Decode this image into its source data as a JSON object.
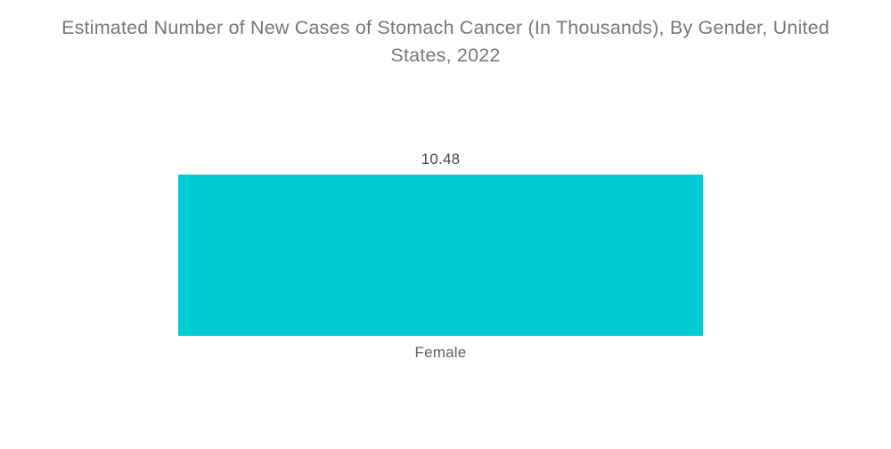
{
  "chart_data": {
    "type": "bar",
    "title": "Estimated Number of New Cases of Stomach Cancer (In Thousands), By Gender, United States, 2022",
    "categories": [
      "Female"
    ],
    "values": [
      10.48
    ],
    "xlabel": "",
    "ylabel": "",
    "ylim": [
      0,
      13
    ],
    "grid": false,
    "legend": "none",
    "colors": {
      "bar": "#00CBD2",
      "title_text": "#75787b",
      "value_text": "#43474b",
      "category_text": "#5d6165",
      "background": "#ffffff"
    }
  }
}
